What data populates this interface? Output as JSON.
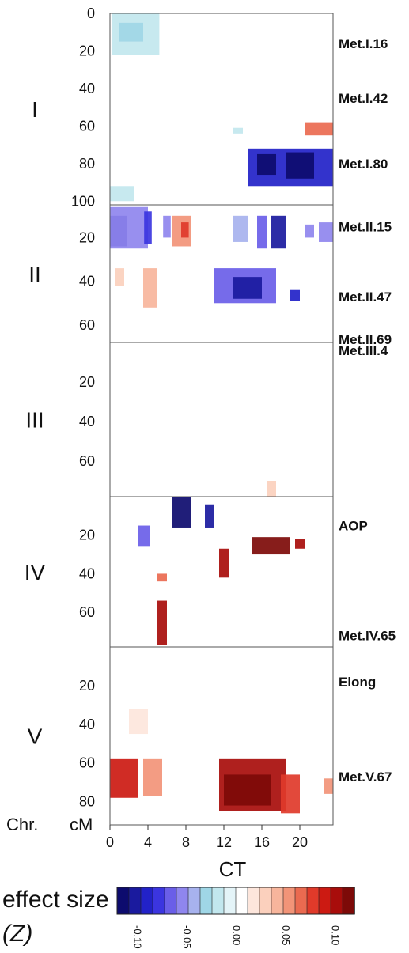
{
  "chart_data": {
    "type": "heatmap",
    "title": "CT",
    "xlabel": "",
    "x_ticks": [
      "0",
      "4",
      "8",
      "12",
      "16",
      "20"
    ],
    "xlim": [
      0,
      23.5
    ],
    "row_header": "Chr.",
    "y_unit_header": "cM",
    "colorbar": {
      "title_line1": "effect size",
      "title_line2": "(Z)",
      "range": [
        -0.12,
        0.12
      ],
      "ticks": [
        "-0.10",
        "-0.05",
        "0.00",
        "0.05",
        "0.10"
      ],
      "colors": [
        "#0d0b6e",
        "#1a1a9e",
        "#2222c8",
        "#3b35e0",
        "#6a5ee8",
        "#8f86ee",
        "#a7b2ee",
        "#9fd6e6",
        "#c2e7ee",
        "#e4f4f8",
        "#ffffff",
        "#fde6dc",
        "#fbd0bd",
        "#f7b59c",
        "#f29478",
        "#ea6a50",
        "#e03a2a",
        "#cc1a12",
        "#a80d0b",
        "#7d0a08"
      ]
    },
    "panels": [
      {
        "chr": "I",
        "ylim": [
          0,
          102
        ],
        "y_ticks": [
          "0",
          "20",
          "40",
          "60",
          "80",
          "100"
        ],
        "markers": [
          {
            "name": "Met.I.16",
            "cM": 16
          },
          {
            "name": "Met.I.42",
            "cM": 45
          },
          {
            "name": "Met.I.80",
            "cM": 80
          }
        ],
        "cells": [
          {
            "x0": 0.2,
            "x1": 5.2,
            "y0": 0,
            "y1": 22,
            "z": -0.02
          },
          {
            "x0": 1,
            "x1": 3.5,
            "y0": 5,
            "y1": 15,
            "z": -0.03
          },
          {
            "x0": 13,
            "x1": 14,
            "y0": 61,
            "y1": 64,
            "z": -0.02
          },
          {
            "x0": 20.5,
            "x1": 23.5,
            "y0": 58,
            "y1": 65,
            "z": 0.06
          },
          {
            "x0": 14.5,
            "x1": 23.5,
            "y0": 72,
            "y1": 92,
            "z": -0.09
          },
          {
            "x0": 15.5,
            "x1": 17.5,
            "y0": 75,
            "y1": 86,
            "z": -0.11
          },
          {
            "x0": 18.5,
            "x1": 21.5,
            "y0": 74,
            "y1": 88,
            "z": -0.12
          },
          {
            "x0": 0,
            "x1": 2.5,
            "y0": 92,
            "y1": 100,
            "z": -0.02
          }
        ]
      },
      {
        "chr": "II",
        "ylim": [
          5,
          68
        ],
        "y_ticks": [
          "20",
          "40",
          "60"
        ],
        "markers": [
          {
            "name": "Met.II.15",
            "cM": 15
          },
          {
            "name": "Met.II.47",
            "cM": 47
          },
          {
            "name": "Met.II.69",
            "cM": 69
          }
        ],
        "cells": [
          {
            "x0": 0,
            "x1": 1.8,
            "y0": 10,
            "y1": 24,
            "z": -0.1
          },
          {
            "x0": 0,
            "x1": 4,
            "y0": 6,
            "y1": 25,
            "z": -0.05
          },
          {
            "x0": 3.6,
            "x1": 4.4,
            "y0": 8,
            "y1": 23,
            "z": -0.08
          },
          {
            "x0": 5.6,
            "x1": 6.4,
            "y0": 10,
            "y1": 20,
            "z": -0.06
          },
          {
            "x0": 6.5,
            "x1": 8.5,
            "y0": 10,
            "y1": 24,
            "z": 0.05
          },
          {
            "x0": 7.5,
            "x1": 8.3,
            "y0": 13,
            "y1": 20,
            "z": 0.08
          },
          {
            "x0": 13,
            "x1": 14.5,
            "y0": 10,
            "y1": 22,
            "z": -0.04
          },
          {
            "x0": 15.5,
            "x1": 16.5,
            "y0": 10,
            "y1": 25,
            "z": -0.07
          },
          {
            "x0": 17,
            "x1": 18.5,
            "y0": 10,
            "y1": 25,
            "z": -0.1
          },
          {
            "x0": 20.5,
            "x1": 21.5,
            "y0": 14,
            "y1": 20,
            "z": -0.06
          },
          {
            "x0": 22,
            "x1": 23.5,
            "y0": 13,
            "y1": 22,
            "z": -0.05
          },
          {
            "x0": 0.5,
            "x1": 1.5,
            "y0": 34,
            "y1": 42,
            "z": 0.03
          },
          {
            "x0": 3.5,
            "x1": 5,
            "y0": 34,
            "y1": 52,
            "z": 0.04
          },
          {
            "x0": 11,
            "x1": 17.5,
            "y0": 34,
            "y1": 50,
            "z": -0.07
          },
          {
            "x0": 13,
            "x1": 16,
            "y0": 38,
            "y1": 48,
            "z": -0.1
          },
          {
            "x0": 19,
            "x1": 20,
            "y0": 44,
            "y1": 49,
            "z": -0.09
          }
        ]
      },
      {
        "chr": "III",
        "ylim": [
          0,
          78
        ],
        "y_ticks": [
          "20",
          "40",
          "60"
        ],
        "markers": [
          {
            "name": "Met.III.4",
            "cM": 4
          }
        ],
        "cells": [
          {
            "x0": 16.5,
            "x1": 17.5,
            "y0": 70,
            "y1": 78,
            "z": 0.03
          }
        ]
      },
      {
        "chr": "IV",
        "ylim": [
          0,
          78
        ],
        "y_ticks": [
          "20",
          "40",
          "60"
        ],
        "markers": [
          {
            "name": "AOP",
            "cM": 15
          },
          {
            "name": "Met.IV.65",
            "cM": 72
          }
        ],
        "cells": [
          {
            "x0": 6.5,
            "x1": 8.5,
            "y0": 0,
            "y1": 16,
            "z": -0.11
          },
          {
            "x0": 10,
            "x1": 11,
            "y0": 4,
            "y1": 16,
            "z": -0.1
          },
          {
            "x0": 3,
            "x1": 4.2,
            "y0": 15,
            "y1": 26,
            "z": -0.07
          },
          {
            "x0": 15,
            "x1": 19,
            "y0": 21,
            "y1": 30,
            "z": 0.11
          },
          {
            "x0": 19.5,
            "x1": 20.5,
            "y0": 22,
            "y1": 27,
            "z": 0.1
          },
          {
            "x0": 11.5,
            "x1": 12.5,
            "y0": 27,
            "y1": 42,
            "z": 0.1
          },
          {
            "x0": 5,
            "x1": 6,
            "y0": 40,
            "y1": 44,
            "z": 0.07
          },
          {
            "x0": 5,
            "x1": 6,
            "y0": 54,
            "y1": 77,
            "z": 0.1
          }
        ]
      },
      {
        "chr": "V",
        "ylim": [
          0,
          92
        ],
        "y_ticks": [
          "20",
          "40",
          "60",
          "80"
        ],
        "markers": [
          {
            "name": "Elong",
            "cM": 18
          },
          {
            "name": "Met.V.67",
            "cM": 67
          }
        ],
        "cells": [
          {
            "x0": 2,
            "x1": 4,
            "y0": 32,
            "y1": 45,
            "z": 0.02
          },
          {
            "x0": 0,
            "x1": 3,
            "y0": 58,
            "y1": 78,
            "z": 0.09
          },
          {
            "x0": 3.5,
            "x1": 5.5,
            "y0": 58,
            "y1": 77,
            "z": 0.05
          },
          {
            "x0": 11.5,
            "x1": 18.5,
            "y0": 58,
            "y1": 85,
            "z": 0.1
          },
          {
            "x0": 12,
            "x1": 17,
            "y0": 66,
            "y1": 82,
            "z": 0.12
          },
          {
            "x0": 18,
            "x1": 20,
            "y0": 66,
            "y1": 86,
            "z": 0.08
          },
          {
            "x0": 22.5,
            "x1": 23.5,
            "y0": 68,
            "y1": 76,
            "z": 0.05
          }
        ]
      }
    ]
  }
}
